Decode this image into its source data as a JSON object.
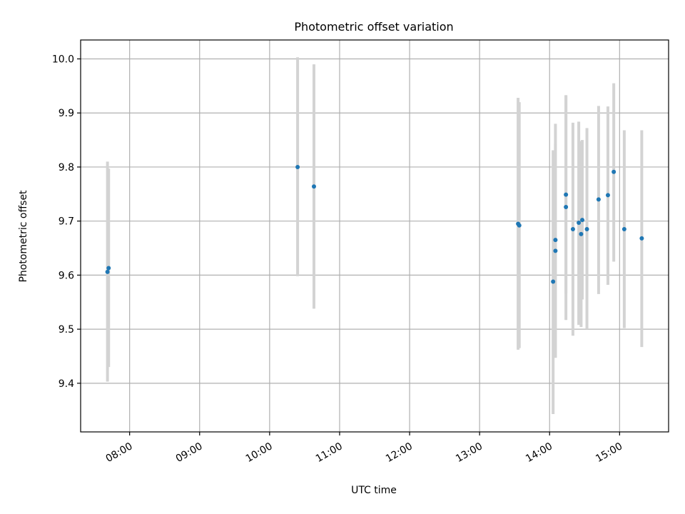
{
  "chart_data": {
    "type": "scatter",
    "title": "Photometric offset variation",
    "xlabel": "UTC time",
    "ylabel": "Photometric offset",
    "xlim": [
      "07:18",
      "15:42"
    ],
    "ylim": [
      9.31,
      10.035
    ],
    "x_ticks": [
      "08:00",
      "09:00",
      "10:00",
      "11:00",
      "12:00",
      "13:00",
      "14:00",
      "15:00"
    ],
    "y_ticks": [
      9.4,
      9.5,
      9.6,
      9.7,
      9.8,
      9.9,
      10.0
    ],
    "grid": true,
    "colors": {
      "point": "#1f77b4",
      "errorbar": "#d3d3d3",
      "grid": "#b0b0b0"
    },
    "points": [
      {
        "x": "07:41",
        "y": 9.606,
        "ylo": 9.403,
        "yhi": 9.81
      },
      {
        "x": "07:42",
        "y": 9.613,
        "ylo": 9.43,
        "yhi": 9.797
      },
      {
        "x": "10:24",
        "y": 9.8,
        "ylo": 9.598,
        "yhi": 10.003
      },
      {
        "x": "10:38",
        "y": 9.764,
        "ylo": 9.538,
        "yhi": 9.99
      },
      {
        "x": "13:33",
        "y": 9.695,
        "ylo": 9.462,
        "yhi": 9.928
      },
      {
        "x": "13:34",
        "y": 9.692,
        "ylo": 9.465,
        "yhi": 9.92
      },
      {
        "x": "14:03",
        "y": 9.588,
        "ylo": 9.343,
        "yhi": 9.831
      },
      {
        "x": "14:05",
        "y": 9.645,
        "ylo": 9.447,
        "yhi": 9.843
      },
      {
        "x": "14:05",
        "y": 9.665,
        "ylo": 9.448,
        "yhi": 9.88
      },
      {
        "x": "14:14",
        "y": 9.749,
        "ylo": 9.566,
        "yhi": 9.932
      },
      {
        "x": "14:14",
        "y": 9.726,
        "ylo": 9.517,
        "yhi": 9.933
      },
      {
        "x": "14:20",
        "y": 9.685,
        "ylo": 9.488,
        "yhi": 9.882
      },
      {
        "x": "14:25",
        "y": 9.697,
        "ylo": 9.508,
        "yhi": 9.884
      },
      {
        "x": "14:27",
        "y": 9.676,
        "ylo": 9.504,
        "yhi": 9.848
      },
      {
        "x": "14:28",
        "y": 9.702,
        "ylo": 9.555,
        "yhi": 9.85
      },
      {
        "x": "14:32",
        "y": 9.685,
        "ylo": 9.5,
        "yhi": 9.872
      },
      {
        "x": "14:42",
        "y": 9.74,
        "ylo": 9.565,
        "yhi": 9.913
      },
      {
        "x": "14:50",
        "y": 9.748,
        "ylo": 9.582,
        "yhi": 9.912
      },
      {
        "x": "14:55",
        "y": 9.791,
        "ylo": 9.625,
        "yhi": 9.955
      },
      {
        "x": "15:04",
        "y": 9.685,
        "ylo": 9.502,
        "yhi": 9.868
      },
      {
        "x": "15:19",
        "y": 9.668,
        "ylo": 9.467,
        "yhi": 9.868
      }
    ]
  }
}
